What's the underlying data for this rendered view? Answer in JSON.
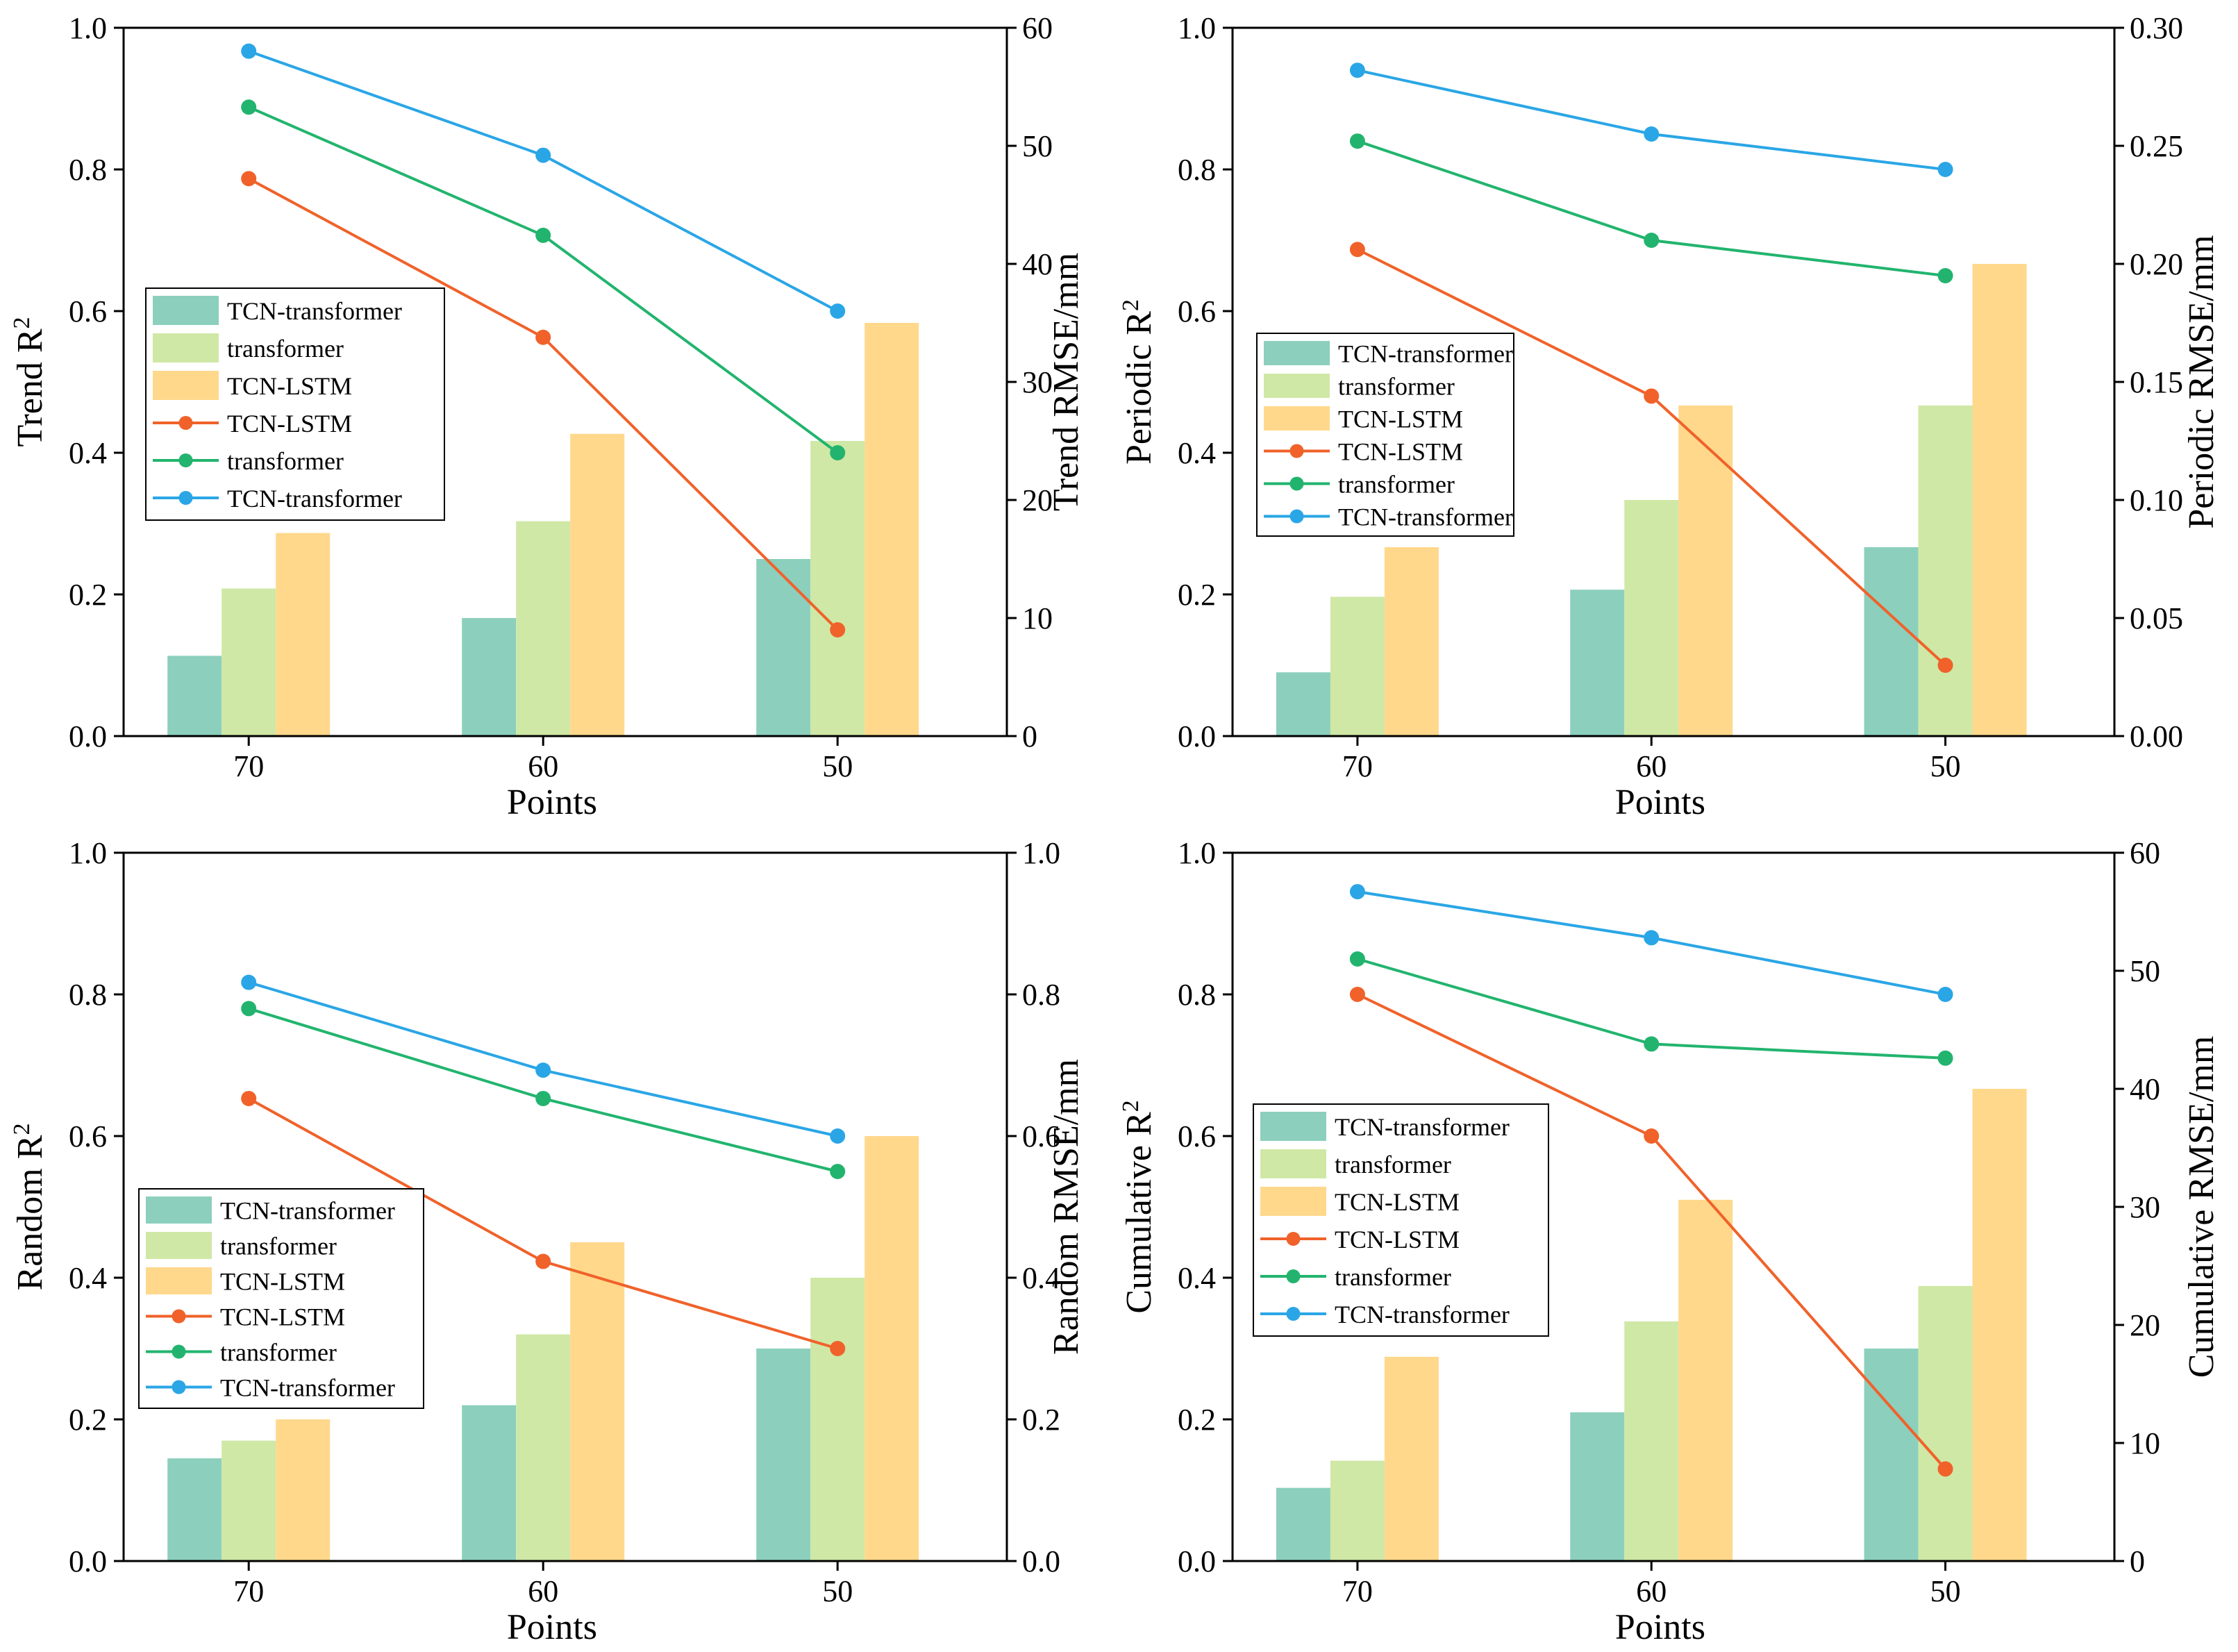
{
  "palette": {
    "tcn_transformer_bar": "#8ccfbd",
    "transformer_bar": "#cfe8a6",
    "tcn_lstm_bar": "#ffd88c",
    "tcn_lstm_line": "#f0622a",
    "transformer_line": "#22b46e",
    "tcn_transformer_line": "#2aa6e6"
  },
  "legend_labels": {
    "bar_tcn_transformer": "TCN-transformer",
    "bar_transformer": "transformer",
    "bar_tcn_lstm": "TCN-LSTM",
    "line_tcn_lstm": "TCN-LSTM",
    "line_transformer": "transformer",
    "line_tcn_transformer": "TCN-transformer"
  },
  "chart_data": [
    {
      "id": "trend",
      "type": "bar+line",
      "xlabel": "Points",
      "ylabel_left": "Trend R",
      "ylabel_left_sup": "2",
      "ylabel_right": "Trend RMSE/mm",
      "categories": [
        "70",
        "60",
        "50"
      ],
      "left_ylim": [
        0,
        1.0
      ],
      "left_ticks": [
        "0.0",
        "0.2",
        "0.4",
        "0.6",
        "0.8",
        "1.0"
      ],
      "right_ylim": [
        0,
        60
      ],
      "right_ticks": [
        "0",
        "10",
        "20",
        "30",
        "40",
        "50",
        "60"
      ],
      "bars_rmse": [
        {
          "name": "TCN-transformer",
          "values": [
            6.8,
            10.0,
            15.0
          ]
        },
        {
          "name": "transformer",
          "values": [
            12.5,
            18.2,
            25.0
          ]
        },
        {
          "name": "TCN-LSTM",
          "values": [
            17.2,
            25.6,
            35.0
          ]
        }
      ],
      "lines_r2": [
        {
          "name": "TCN-LSTM",
          "values": [
            0.787,
            0.563,
            0.15
          ]
        },
        {
          "name": "transformer",
          "values": [
            0.888,
            0.707,
            0.4
          ]
        },
        {
          "name": "TCN-transformer",
          "values": [
            0.967,
            0.82,
            0.6
          ]
        }
      ]
    },
    {
      "id": "periodic",
      "type": "bar+line",
      "xlabel": "Points",
      "ylabel_left": "Periodic R",
      "ylabel_left_sup": "2",
      "ylabel_right": "Periodic RMSE/mm",
      "categories": [
        "70",
        "60",
        "50"
      ],
      "left_ylim": [
        0,
        1.0
      ],
      "left_ticks": [
        "0.0",
        "0.2",
        "0.4",
        "0.6",
        "0.8",
        "1.0"
      ],
      "right_ylim": [
        0,
        0.3
      ],
      "right_ticks": [
        "0.00",
        "0.05",
        "0.10",
        "0.15",
        "0.20",
        "0.25",
        "0.30"
      ],
      "bars_rmse": [
        {
          "name": "TCN-transformer",
          "values": [
            0.027,
            0.062,
            0.08
          ]
        },
        {
          "name": "transformer",
          "values": [
            0.059,
            0.1,
            0.14
          ]
        },
        {
          "name": "TCN-LSTM",
          "values": [
            0.08,
            0.14,
            0.2
          ]
        }
      ],
      "lines_r2": [
        {
          "name": "TCN-LSTM",
          "values": [
            0.687,
            0.48,
            0.1
          ]
        },
        {
          "name": "transformer",
          "values": [
            0.84,
            0.7,
            0.65
          ]
        },
        {
          "name": "TCN-transformer",
          "values": [
            0.94,
            0.85,
            0.8
          ]
        }
      ]
    },
    {
      "id": "random",
      "type": "bar+line",
      "xlabel": "Points",
      "ylabel_left": "Random R",
      "ylabel_left_sup": "2",
      "ylabel_right": "Random RMSE/mm",
      "categories": [
        "70",
        "60",
        "50"
      ],
      "left_ylim": [
        0,
        1.0
      ],
      "left_ticks": [
        "0.0",
        "0.2",
        "0.4",
        "0.6",
        "0.8",
        "1.0"
      ],
      "right_ylim": [
        0,
        1.0
      ],
      "right_ticks": [
        "0.0",
        "0.2",
        "0.4",
        "0.6",
        "0.8",
        "1.0"
      ],
      "bars_rmse": [
        {
          "name": "TCN-transformer",
          "values": [
            0.145,
            0.22,
            0.3
          ]
        },
        {
          "name": "transformer",
          "values": [
            0.17,
            0.32,
            0.4
          ]
        },
        {
          "name": "TCN-LSTM",
          "values": [
            0.2,
            0.45,
            0.6
          ]
        }
      ],
      "lines_r2": [
        {
          "name": "TCN-LSTM",
          "values": [
            0.653,
            0.423,
            0.3
          ]
        },
        {
          "name": "transformer",
          "values": [
            0.78,
            0.653,
            0.55
          ]
        },
        {
          "name": "TCN-transformer",
          "values": [
            0.817,
            0.693,
            0.6
          ]
        }
      ]
    },
    {
      "id": "cumulative",
      "type": "bar+line",
      "xlabel": "Points",
      "ylabel_left": "Cumulative R",
      "ylabel_left_sup": "2",
      "ylabel_right": "Cumulative RMSE/mm",
      "categories": [
        "70",
        "60",
        "50"
      ],
      "left_ylim": [
        0,
        1.0
      ],
      "left_ticks": [
        "0.0",
        "0.2",
        "0.4",
        "0.6",
        "0.8",
        "1.0"
      ],
      "right_ylim": [
        0,
        60
      ],
      "right_ticks": [
        "0",
        "10",
        "20",
        "30",
        "40",
        "50",
        "60"
      ],
      "bars_rmse": [
        {
          "name": "TCN-transformer",
          "values": [
            6.2,
            12.6,
            18.0
          ]
        },
        {
          "name": "transformer",
          "values": [
            8.5,
            20.3,
            23.3
          ]
        },
        {
          "name": "TCN-LSTM",
          "values": [
            17.3,
            30.6,
            40.0
          ]
        }
      ],
      "lines_r2": [
        {
          "name": "TCN-LSTM",
          "values": [
            0.8,
            0.6,
            0.13
          ]
        },
        {
          "name": "transformer",
          "values": [
            0.85,
            0.73,
            0.71
          ]
        },
        {
          "name": "TCN-transformer",
          "values": [
            0.945,
            0.88,
            0.8
          ]
        }
      ]
    }
  ]
}
